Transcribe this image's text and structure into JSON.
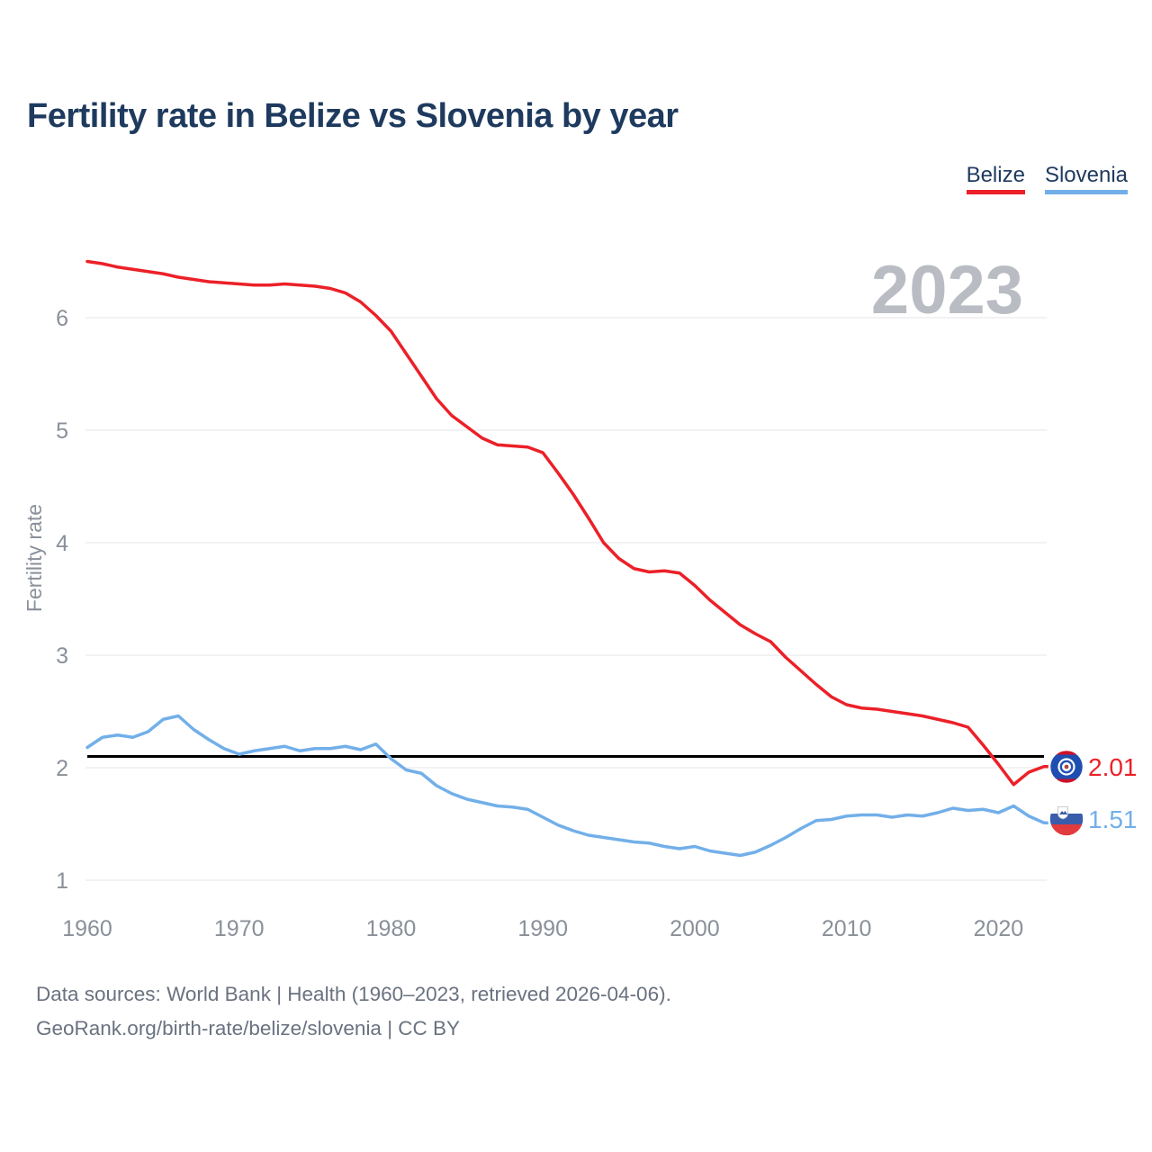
{
  "title": "Fertility rate in Belize vs Slovenia by year",
  "legend": {
    "items": [
      {
        "label": "Belize",
        "color": "#ec2028"
      },
      {
        "label": "Slovenia",
        "color": "#72afe9"
      }
    ]
  },
  "watermark": "2023",
  "end_labels": {
    "belize": "2.01",
    "slovenia": "1.51"
  },
  "footer": {
    "line1": "Data sources: World Bank | Health (1960–2023, retrieved 2026-04-06).",
    "line2": "GeoRank.org/birth-rate/belize/slovenia | CC BY"
  },
  "chart_data": {
    "type": "line",
    "title": "Fertility rate in Belize vs Slovenia by year",
    "xlabel": "",
    "ylabel": "Fertility rate",
    "grid": "horizontal",
    "legend_position": "top-right",
    "xticks": [
      1960,
      1970,
      1980,
      1990,
      2000,
      2010,
      2020
    ],
    "yticks": [
      1,
      2,
      3,
      4,
      5,
      6
    ],
    "xlim": [
      1960,
      2023
    ],
    "ylim": [
      0.7,
      6.6
    ],
    "reference_line": {
      "value": 2.1,
      "color": "#000000"
    },
    "x": [
      1960,
      1961,
      1962,
      1963,
      1964,
      1965,
      1966,
      1967,
      1968,
      1969,
      1970,
      1971,
      1972,
      1973,
      1974,
      1975,
      1976,
      1977,
      1978,
      1979,
      1980,
      1981,
      1982,
      1983,
      1984,
      1985,
      1986,
      1987,
      1988,
      1989,
      1990,
      1991,
      1992,
      1993,
      1994,
      1995,
      1996,
      1997,
      1998,
      1999,
      2000,
      2001,
      2002,
      2003,
      2004,
      2005,
      2006,
      2007,
      2008,
      2009,
      2010,
      2011,
      2012,
      2013,
      2014,
      2015,
      2016,
      2017,
      2018,
      2019,
      2020,
      2021,
      2022,
      2023
    ],
    "series": [
      {
        "name": "Belize",
        "color": "#ec2028",
        "final_value": 2.01,
        "values": [
          6.5,
          6.48,
          6.45,
          6.43,
          6.41,
          6.39,
          6.36,
          6.34,
          6.32,
          6.31,
          6.3,
          6.29,
          6.29,
          6.3,
          6.29,
          6.28,
          6.26,
          6.22,
          6.14,
          6.02,
          5.88,
          5.68,
          5.48,
          5.28,
          5.13,
          5.03,
          4.93,
          4.87,
          4.86,
          4.85,
          4.8,
          4.62,
          4.43,
          4.22,
          4.0,
          3.86,
          3.77,
          3.74,
          3.75,
          3.73,
          3.62,
          3.49,
          3.38,
          3.27,
          3.19,
          3.12,
          2.98,
          2.86,
          2.74,
          2.63,
          2.56,
          2.53,
          2.52,
          2.5,
          2.48,
          2.46,
          2.43,
          2.4,
          2.36,
          2.2,
          2.03,
          1.85,
          1.96,
          2.01
        ]
      },
      {
        "name": "Slovenia",
        "color": "#72afe9",
        "final_value": 1.51,
        "values": [
          2.18,
          2.27,
          2.29,
          2.27,
          2.32,
          2.43,
          2.46,
          2.34,
          2.25,
          2.17,
          2.12,
          2.15,
          2.17,
          2.19,
          2.15,
          2.17,
          2.17,
          2.19,
          2.16,
          2.21,
          2.08,
          1.98,
          1.95,
          1.84,
          1.77,
          1.72,
          1.69,
          1.66,
          1.65,
          1.63,
          1.56,
          1.49,
          1.44,
          1.4,
          1.38,
          1.36,
          1.34,
          1.33,
          1.3,
          1.28,
          1.3,
          1.26,
          1.24,
          1.22,
          1.25,
          1.31,
          1.38,
          1.46,
          1.53,
          1.54,
          1.57,
          1.58,
          1.58,
          1.56,
          1.58,
          1.57,
          1.6,
          1.64,
          1.62,
          1.63,
          1.6,
          1.66,
          1.57,
          1.51
        ]
      }
    ]
  }
}
